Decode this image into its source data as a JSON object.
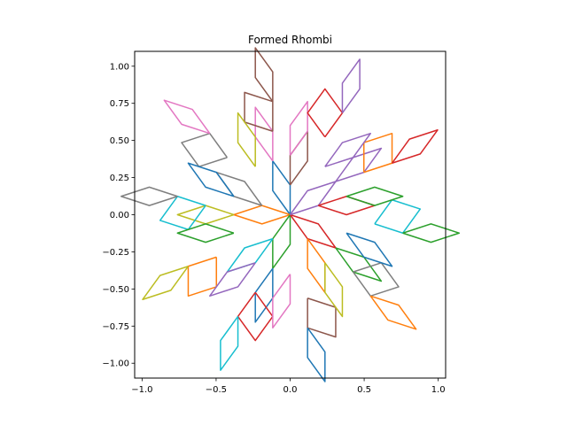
{
  "chart_data": {
    "type": "line",
    "title": "Formed Rhombi",
    "xlabel": "",
    "ylabel": "",
    "xlim": [
      -1.05,
      1.05
    ],
    "ylim": [
      -1.1,
      1.1
    ],
    "xticks": [
      -1.0,
      -0.5,
      0.0,
      0.5,
      1.0
    ],
    "xtick_labels": [
      "−1.0",
      "−0.5",
      "0.0",
      "0.5",
      "1.0"
    ],
    "yticks": [
      -1.0,
      -0.75,
      -0.5,
      -0.25,
      0.0,
      0.25,
      0.5,
      0.75,
      1.0
    ],
    "ytick_labels": [
      "−1.00",
      "−0.75",
      "−0.50",
      "−0.25",
      "0.00",
      "0.25",
      "0.50",
      "0.75",
      "1.00"
    ],
    "grid": false,
    "legend": "none",
    "colors": [
      "#1f77b4",
      "#ff7f0e",
      "#2ca02c",
      "#d62728",
      "#9467bd",
      "#8c564b",
      "#e377c2",
      "#7f7f7f",
      "#bcbd22",
      "#17becf"
    ],
    "rhombi": [
      [
        [
          0.0,
          0.0
        ],
        [
          0.0,
          0.2
        ],
        [
          -0.2,
          0.38
        ],
        [
          -0.2,
          0.13
        ]
      ]
    ]
  }
}
